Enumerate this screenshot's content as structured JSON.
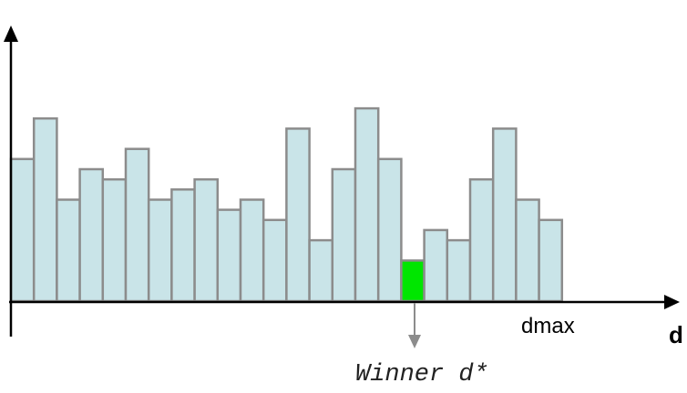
{
  "chart_data": {
    "type": "bar",
    "title": "",
    "xlabel": "d",
    "ylabel": "",
    "x_tick_label": "dmax",
    "values": [
      7,
      9,
      5,
      6.5,
      6,
      7.5,
      5,
      5.5,
      6,
      4.5,
      5,
      4,
      8.5,
      3,
      6.5,
      9.5,
      7,
      2,
      3.5,
      3,
      6,
      8.5,
      5,
      4
    ],
    "winner_index": 17,
    "annotation": "Winner d*",
    "ylim": [
      0,
      13
    ],
    "grid": false,
    "colors": {
      "bar_fill": "#c9e4e8",
      "bar_stroke": "#8c8c8c",
      "winner_fill": "#00e600",
      "pointer": "#8c8c8c"
    }
  }
}
